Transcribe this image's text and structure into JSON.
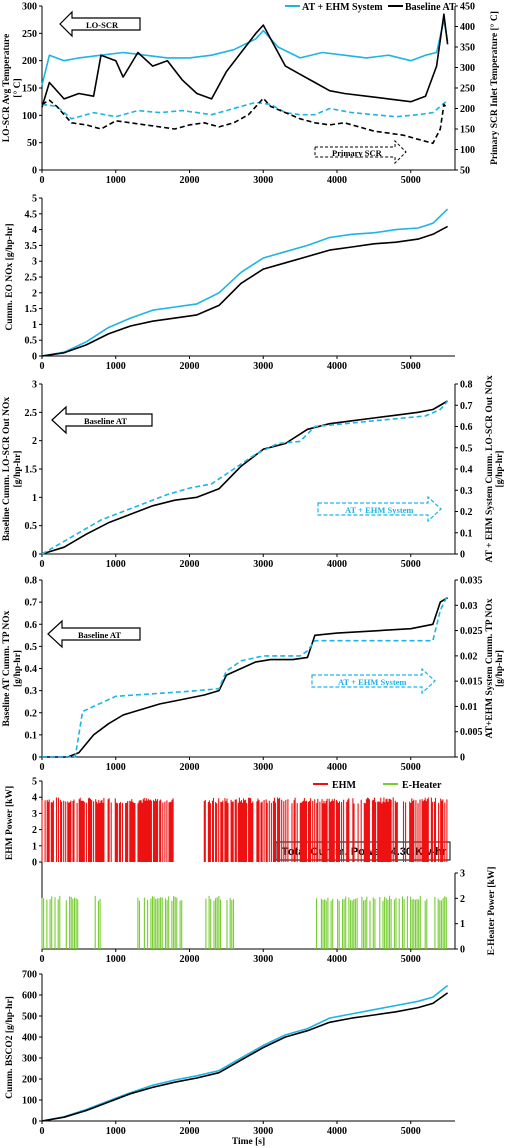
{
  "colors": {
    "ehm_system": "#1db4e6",
    "baseline": "#000000",
    "ehm_power": "#ee1111",
    "e_heater": "#77cc33"
  },
  "chart_data": [
    {
      "id": "temperature",
      "type": "line",
      "ylabel": "LO-SCR Avg Temperature [° C]",
      "y2label": "Primary SCR Inlet Temperature [° C]",
      "ylim": [
        0,
        300
      ],
      "y2lim": [
        50,
        450
      ],
      "xlim": [
        0,
        5600
      ],
      "yticks": [
        0,
        50,
        100,
        150,
        200,
        250,
        300
      ],
      "y2ticks": [
        50,
        100,
        150,
        200,
        250,
        300,
        350,
        400,
        450
      ],
      "xticks": [
        0,
        1000,
        2000,
        3000,
        4000,
        5000
      ],
      "legend": {
        "ehm": "AT + EHM System",
        "base": "Baseline AT",
        "position": "top"
      },
      "annotations": {
        "lo_scr": "LO-SCR",
        "primary_scr": "Primary SCR"
      },
      "series": [
        {
          "name": "AT + EHM System",
          "axis": "left",
          "style": "solid",
          "x": [
            0,
            100,
            300,
            500,
            800,
            1100,
            1400,
            1700,
            2000,
            2300,
            2600,
            2900,
            3000,
            3200,
            3500,
            3800,
            4100,
            4400,
            4700,
            5000,
            5200,
            5350,
            5450,
            5500
          ],
          "y": [
            155,
            210,
            200,
            205,
            210,
            215,
            210,
            205,
            205,
            210,
            220,
            240,
            255,
            225,
            205,
            215,
            210,
            205,
            210,
            200,
            210,
            215,
            275,
            235
          ]
        },
        {
          "name": "Baseline AT",
          "axis": "left",
          "style": "solid",
          "x": [
            0,
            100,
            300,
            500,
            700,
            800,
            1000,
            1100,
            1300,
            1500,
            1700,
            1900,
            2100,
            2300,
            2500,
            2700,
            2900,
            3000,
            3100,
            3300,
            3500,
            3700,
            3900,
            4100,
            4400,
            4700,
            5000,
            5200,
            5350,
            5450,
            5500
          ],
          "y": [
            115,
            160,
            130,
            140,
            135,
            210,
            200,
            170,
            215,
            190,
            200,
            165,
            140,
            130,
            180,
            215,
            250,
            265,
            240,
            190,
            175,
            160,
            145,
            140,
            135,
            130,
            125,
            135,
            190,
            285,
            230
          ]
        },
        {
          "name": "AT + EHM System (Primary SCR)",
          "axis": "right",
          "style": "dashed",
          "x": [
            0,
            200,
            400,
            700,
            1000,
            1300,
            1600,
            1900,
            2100,
            2300,
            2500,
            2700,
            2900,
            3100,
            3300,
            3500,
            3700,
            3900,
            4200,
            4500,
            4800,
            5100,
            5300,
            5500
          ],
          "y": [
            210,
            205,
            175,
            190,
            180,
            195,
            190,
            195,
            190,
            185,
            195,
            205,
            215,
            210,
            190,
            185,
            185,
            200,
            190,
            185,
            180,
            185,
            190,
            220
          ]
        },
        {
          "name": "Baseline AT (Primary SCR)",
          "axis": "right",
          "style": "dashed",
          "x": [
            0,
            100,
            200,
            300,
            400,
            600,
            800,
            1000,
            1200,
            1400,
            1600,
            1800,
            2000,
            2200,
            2400,
            2600,
            2800,
            3000,
            3100,
            3300,
            3500,
            3700,
            3900,
            4100,
            4300,
            4500,
            4700,
            4900,
            5100,
            5300,
            5400,
            5450,
            5500
          ],
          "y": [
            210,
            220,
            205,
            185,
            165,
            160,
            150,
            170,
            165,
            160,
            155,
            150,
            160,
            165,
            155,
            165,
            185,
            225,
            205,
            190,
            175,
            165,
            160,
            165,
            155,
            145,
            140,
            135,
            125,
            115,
            150,
            210,
            200
          ]
        }
      ]
    },
    {
      "id": "eo_nox",
      "type": "line",
      "ylabel": "Cumm. EO NOx [g/hp-hr]",
      "ylim": [
        0,
        5
      ],
      "xlim": [
        0,
        5600
      ],
      "yticks": [
        0,
        0.5,
        1,
        1.5,
        2,
        2.5,
        3,
        3.5,
        4,
        4.5,
        5
      ],
      "xticks": [
        0,
        1000,
        2000,
        3000,
        4000,
        5000
      ],
      "series": [
        {
          "name": "AT + EHM System",
          "x": [
            0,
            300,
            600,
            900,
            1200,
            1500,
            1800,
            2100,
            2400,
            2700,
            3000,
            3300,
            3600,
            3900,
            4200,
            4500,
            4800,
            5100,
            5300,
            5500
          ],
          "y": [
            0,
            0.12,
            0.45,
            0.9,
            1.2,
            1.45,
            1.55,
            1.65,
            2.0,
            2.65,
            3.1,
            3.3,
            3.5,
            3.75,
            3.85,
            3.9,
            4.0,
            4.05,
            4.2,
            4.65
          ]
        },
        {
          "name": "Baseline AT",
          "x": [
            0,
            300,
            600,
            900,
            1200,
            1500,
            1800,
            2100,
            2400,
            2700,
            3000,
            3300,
            3600,
            3900,
            4200,
            4500,
            4800,
            5100,
            5300,
            5500
          ],
          "y": [
            0,
            0.1,
            0.35,
            0.7,
            0.95,
            1.1,
            1.2,
            1.3,
            1.6,
            2.3,
            2.75,
            2.95,
            3.15,
            3.35,
            3.45,
            3.55,
            3.6,
            3.7,
            3.85,
            4.1
          ]
        }
      ]
    },
    {
      "id": "lo_scr_out_nox",
      "type": "line",
      "ylabel": "Baseline Cumm. LO-SCR Out NOx [g/hp-hr]",
      "y2label": "AT + EHM System Cumm. LO-SCR Out NOx [g/hp-hr]",
      "ylim": [
        0,
        3
      ],
      "y2lim": [
        0,
        0.8
      ],
      "xlim": [
        0,
        5600
      ],
      "yticks": [
        0,
        0.5,
        1,
        1.5,
        2,
        2.5,
        3
      ],
      "y2ticks": [
        0,
        0.1,
        0.2,
        0.3,
        0.4,
        0.5,
        0.6,
        0.7,
        0.8
      ],
      "xticks": [
        0,
        1000,
        2000,
        3000,
        4000,
        5000
      ],
      "annotations": {
        "baseline": "Baseline AT",
        "ehm": "AT + EHM System"
      },
      "series": [
        {
          "name": "Baseline AT",
          "axis": "left",
          "style": "solid",
          "x": [
            0,
            300,
            600,
            900,
            1200,
            1500,
            1800,
            2100,
            2400,
            2700,
            3000,
            3300,
            3600,
            3900,
            4200,
            4500,
            4800,
            5100,
            5300,
            5500
          ],
          "y": [
            0,
            0.12,
            0.35,
            0.55,
            0.7,
            0.85,
            0.95,
            1.0,
            1.15,
            1.55,
            1.85,
            1.95,
            2.2,
            2.3,
            2.35,
            2.4,
            2.45,
            2.5,
            2.55,
            2.7
          ]
        },
        {
          "name": "AT + EHM System",
          "axis": "right",
          "style": "dashed",
          "x": [
            0,
            200,
            500,
            800,
            1100,
            1400,
            1700,
            2000,
            2300,
            2600,
            2900,
            3200,
            3500,
            3700,
            4000,
            4300,
            4600,
            4900,
            5200,
            5400,
            5500
          ],
          "y": [
            0,
            0.04,
            0.1,
            0.16,
            0.2,
            0.24,
            0.28,
            0.31,
            0.33,
            0.4,
            0.47,
            0.52,
            0.53,
            0.6,
            0.61,
            0.62,
            0.63,
            0.64,
            0.65,
            0.68,
            0.72
          ]
        }
      ]
    },
    {
      "id": "tp_nox",
      "type": "line",
      "ylabel": "Baseline AT Cumm. TP NOx [g/hp-hr]",
      "y2label": "AT+EHM System Cumm. TP NOx [g/hp-hr]",
      "ylim": [
        0,
        0.8
      ],
      "y2lim": [
        0,
        0.035
      ],
      "xlim": [
        0,
        5600
      ],
      "yticks": [
        0,
        0.1,
        0.2,
        0.3,
        0.4,
        0.5,
        0.6,
        0.7,
        0.8
      ],
      "y2ticks": [
        0,
        0.005,
        0.01,
        0.015,
        0.02,
        0.025,
        0.03,
        0.035
      ],
      "xticks": [
        0,
        1000,
        2000,
        3000,
        4000,
        5000
      ],
      "annotations": {
        "baseline": "Baseline AT",
        "ehm": "AT + EHM System"
      },
      "series": [
        {
          "name": "Baseline AT",
          "axis": "left",
          "style": "solid",
          "x": [
            0,
            350,
            500,
            700,
            900,
            1100,
            1300,
            1600,
            1900,
            2200,
            2400,
            2500,
            2700,
            2900,
            3100,
            3400,
            3600,
            3700,
            4000,
            4500,
            5000,
            5300,
            5400,
            5500
          ],
          "y": [
            0,
            0,
            0.02,
            0.1,
            0.15,
            0.19,
            0.21,
            0.24,
            0.26,
            0.28,
            0.3,
            0.37,
            0.4,
            0.43,
            0.44,
            0.44,
            0.45,
            0.55,
            0.56,
            0.57,
            0.58,
            0.6,
            0.7,
            0.72
          ]
        },
        {
          "name": "AT + EHM System",
          "axis": "right",
          "style": "dashed",
          "x": [
            0,
            450,
            550,
            700,
            1000,
            1500,
            2000,
            2400,
            2500,
            2700,
            3000,
            3500,
            3600,
            3700,
            4000,
            4500,
            5000,
            5300,
            5400,
            5500
          ],
          "y": [
            0,
            0,
            0.009,
            0.01,
            0.012,
            0.0125,
            0.013,
            0.0135,
            0.017,
            0.019,
            0.02,
            0.02,
            0.021,
            0.023,
            0.023,
            0.023,
            0.023,
            0.023,
            0.029,
            0.032
          ]
        }
      ]
    },
    {
      "id": "power",
      "type": "line",
      "ylabel": "EHM Power [kW]",
      "y2label": "E-Heater Power [kW]",
      "ylim": [
        0,
        5
      ],
      "y2lim": [
        0,
        3
      ],
      "xlim": [
        0,
        5600
      ],
      "yticks": [
        0,
        1,
        2,
        3,
        4,
        5
      ],
      "y2ticks": [
        0,
        1,
        2,
        3
      ],
      "xticks": [
        0,
        1000,
        2000,
        3000,
        4000,
        5000
      ],
      "legend": {
        "ehm": "EHM",
        "heater": "E-Heater",
        "position": "top-right"
      },
      "annotation": "Total Cumm. Power: 4.30 Kw-hr",
      "series": [
        {
          "name": "EHM",
          "on_level_kw": 3.8,
          "on_intervals_s": [
            [
              0,
              1800
            ],
            [
              2200,
              5500
            ]
          ]
        },
        {
          "name": "E-Heater",
          "on_level_kw": 2.0,
          "on_intervals_s": [
            [
              0,
              500
            ],
            [
              700,
              800
            ],
            [
              1300,
              1900
            ],
            [
              2200,
              2600
            ],
            [
              3700,
              5500
            ]
          ]
        }
      ]
    },
    {
      "id": "bsco2",
      "type": "line",
      "ylabel": "Cumm. BSCO2 [g/hp-hr]",
      "xlabel": "Time [s]",
      "ylim": [
        0,
        700
      ],
      "xlim": [
        0,
        5600
      ],
      "yticks": [
        0,
        100,
        200,
        300,
        400,
        500,
        600,
        700
      ],
      "xticks": [
        0,
        1000,
        2000,
        3000,
        4000,
        5000
      ],
      "series": [
        {
          "name": "AT + EHM System",
          "x": [
            0,
            300,
            600,
            900,
            1200,
            1500,
            1800,
            2100,
            2400,
            2700,
            3000,
            3300,
            3600,
            3900,
            4200,
            4500,
            4800,
            5100,
            5300,
            5500
          ],
          "y": [
            0,
            20,
            55,
            95,
            135,
            170,
            195,
            215,
            240,
            300,
            360,
            410,
            440,
            490,
            510,
            530,
            550,
            570,
            590,
            645
          ]
        },
        {
          "name": "Baseline AT",
          "x": [
            0,
            300,
            600,
            900,
            1200,
            1500,
            1800,
            2100,
            2400,
            2700,
            3000,
            3300,
            3600,
            3900,
            4200,
            4500,
            4800,
            5100,
            5300,
            5500
          ],
          "y": [
            0,
            18,
            50,
            90,
            130,
            160,
            185,
            205,
            230,
            290,
            350,
            400,
            430,
            470,
            490,
            505,
            520,
            540,
            560,
            610
          ]
        }
      ]
    }
  ]
}
